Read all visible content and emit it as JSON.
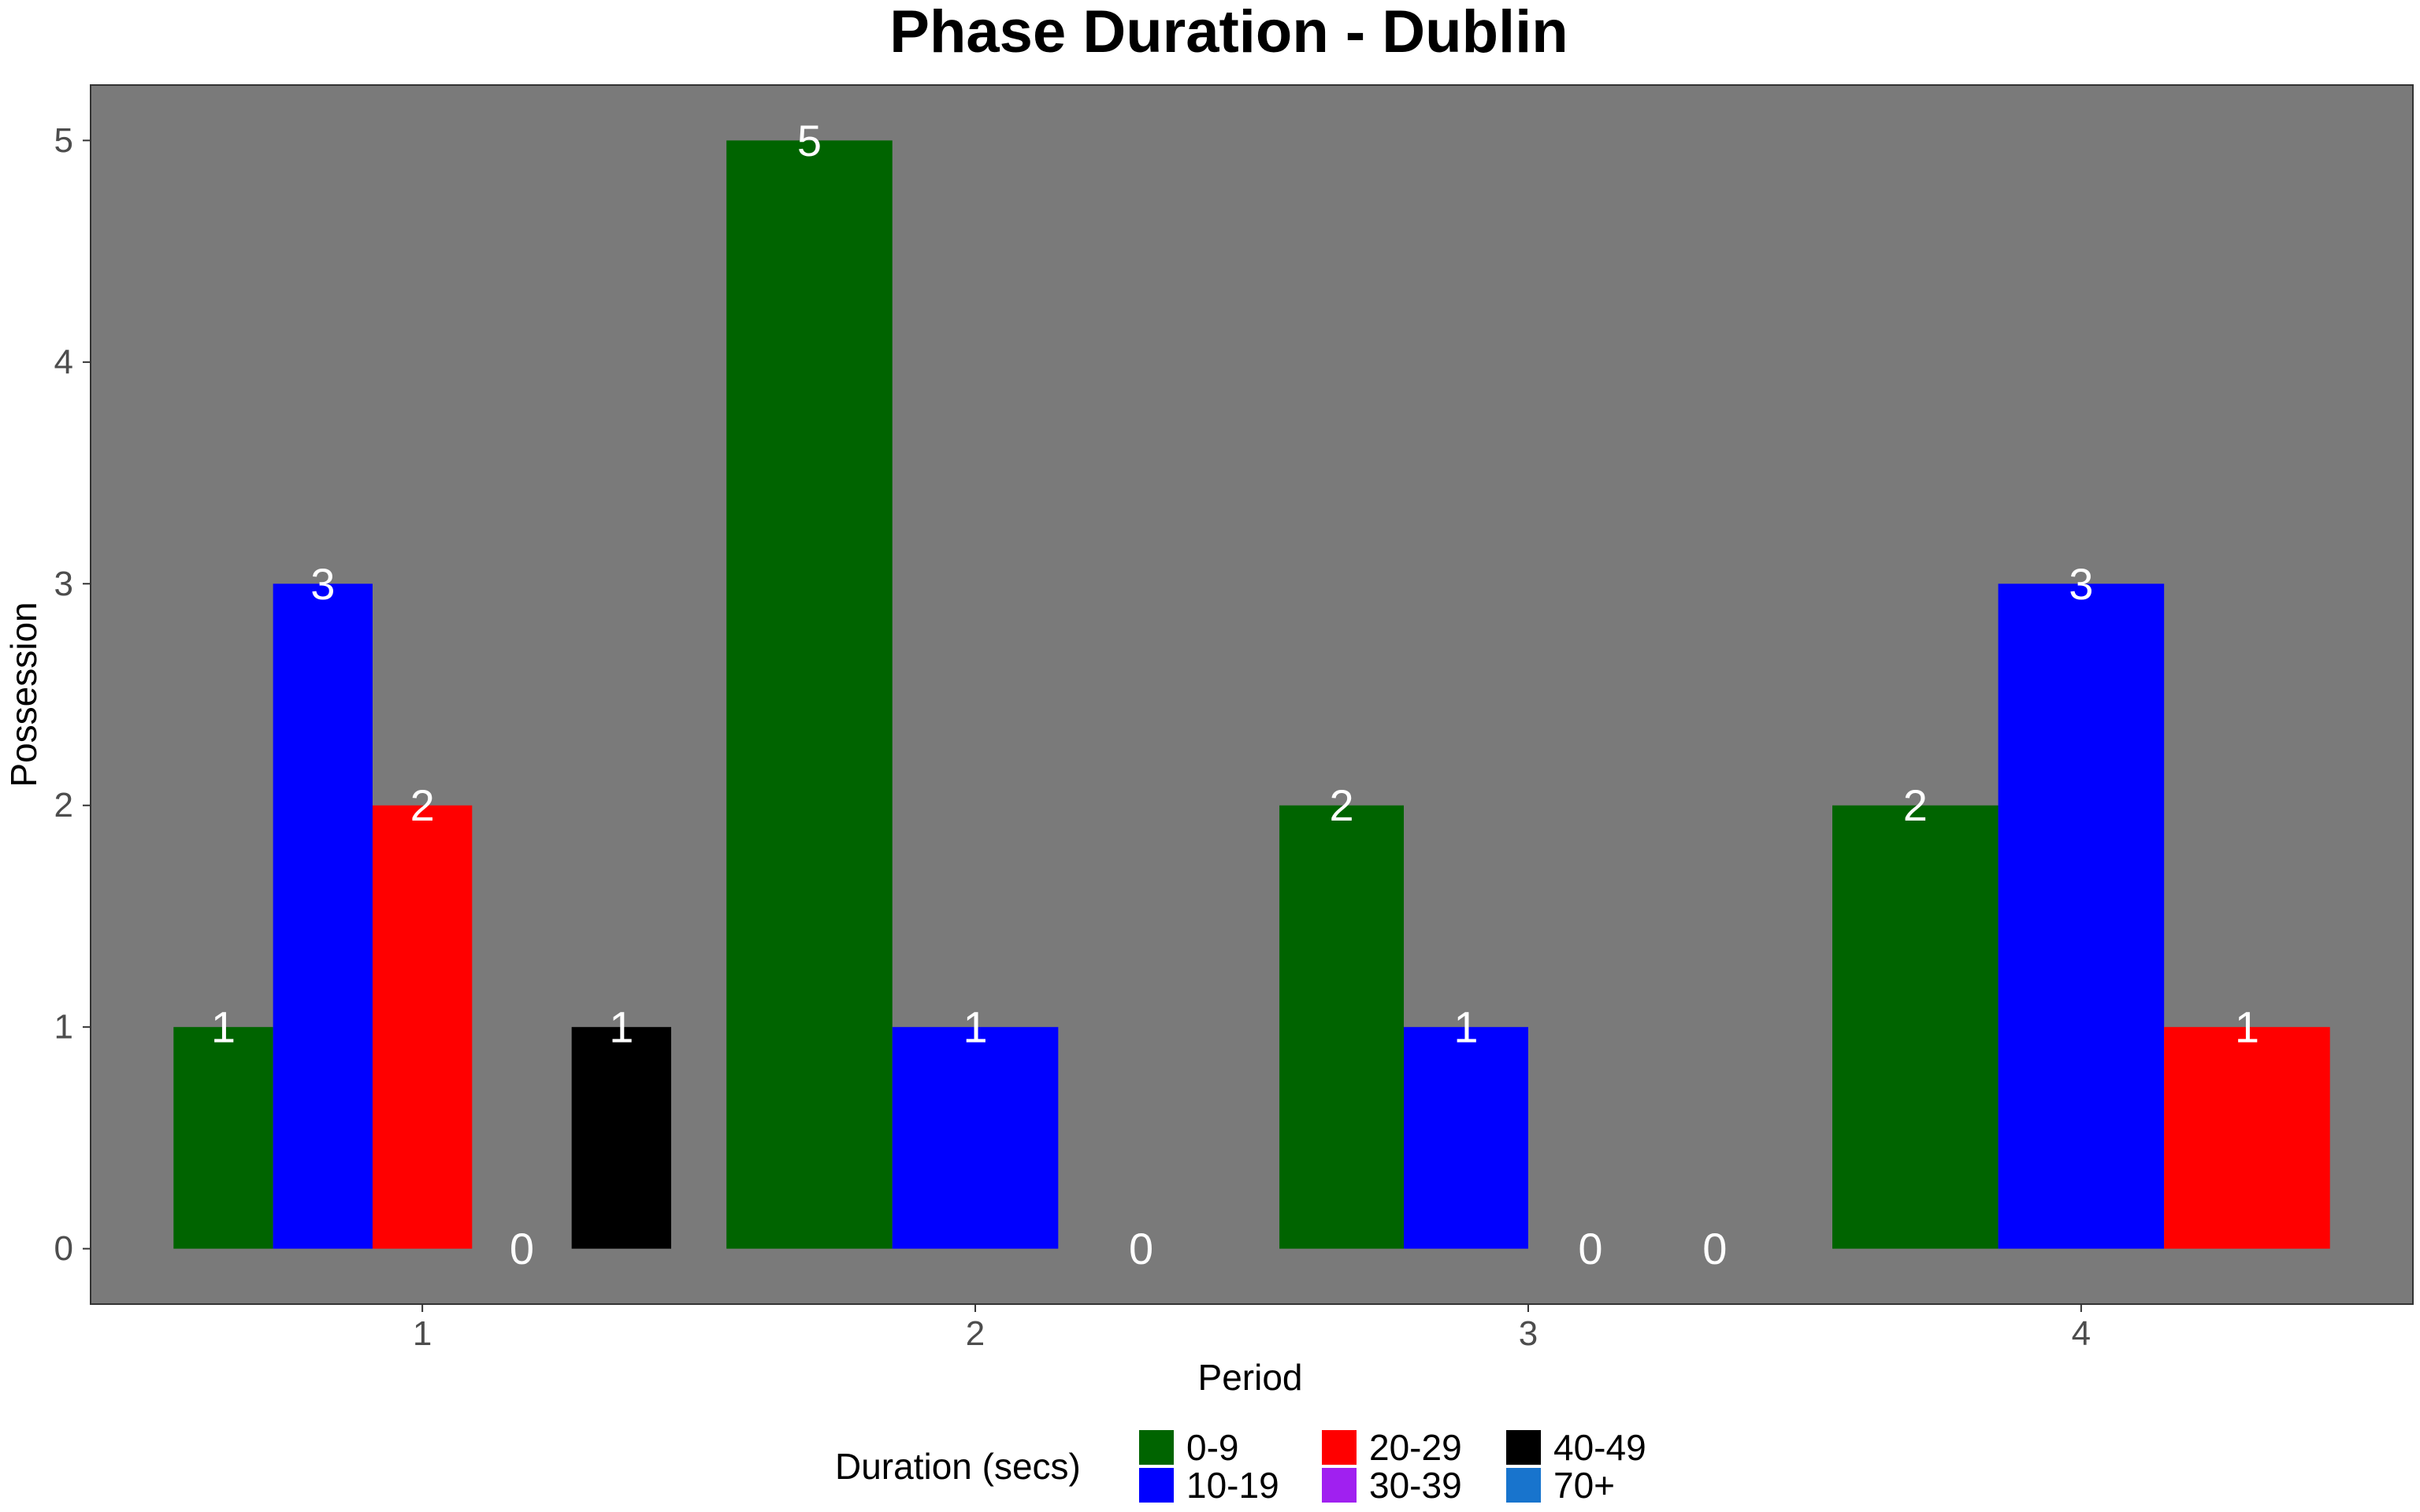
{
  "chart_data": {
    "type": "bar",
    "title": "Phase Duration - Dublin",
    "xlabel": "Period",
    "ylabel": "Possession",
    "categories": [
      "1",
      "2",
      "3",
      "4"
    ],
    "ylim": [
      -0.25,
      5.25
    ],
    "y_ticks": [
      "0",
      "1",
      "2",
      "3",
      "4",
      "5"
    ],
    "grid": false,
    "legend_position": "bottom",
    "legend": {
      "title": "Duration (secs)",
      "entries": [
        {
          "label": "0-9",
          "color": "#006400"
        },
        {
          "label": "10-19",
          "color": "#0000FF"
        },
        {
          "label": "20-29",
          "color": "#FF0000"
        },
        {
          "label": "30-39",
          "color": "#A020F0"
        },
        {
          "label": "40-49",
          "color": "#000000"
        },
        {
          "label": "70+",
          "color": "#1874CD"
        }
      ]
    },
    "groups": [
      {
        "period": "1",
        "bars": [
          {
            "duration": "0-9",
            "value": 1,
            "color": "#006400"
          },
          {
            "duration": "10-19",
            "value": 3,
            "color": "#0000FF"
          },
          {
            "duration": "20-29",
            "value": 2,
            "color": "#FF0000"
          },
          {
            "duration": "30-39",
            "value": 0,
            "color": "#A020F0"
          },
          {
            "duration": "40-49",
            "value": 1,
            "color": "#000000"
          }
        ]
      },
      {
        "period": "2",
        "bars": [
          {
            "duration": "0-9",
            "value": 5,
            "color": "#006400"
          },
          {
            "duration": "10-19",
            "value": 1,
            "color": "#0000FF"
          },
          {
            "duration": "70+",
            "value": 0,
            "color": "#1874CD"
          }
        ]
      },
      {
        "period": "3",
        "bars": [
          {
            "duration": "0-9",
            "value": 2,
            "color": "#006400"
          },
          {
            "duration": "10-19",
            "value": 1,
            "color": "#0000FF"
          },
          {
            "duration": "20-29",
            "value": 0,
            "color": "#FF0000"
          },
          {
            "duration": "30-39",
            "value": 0,
            "color": "#A020F0"
          }
        ]
      },
      {
        "period": "4",
        "bars": [
          {
            "duration": "0-9",
            "value": 2,
            "color": "#006400"
          },
          {
            "duration": "10-19",
            "value": 3,
            "color": "#0000FF"
          },
          {
            "duration": "20-29",
            "value": 1,
            "color": "#FF0000"
          }
        ]
      }
    ],
    "panel_color": "#7A7A7A",
    "label_color": "#FFFFFF"
  }
}
